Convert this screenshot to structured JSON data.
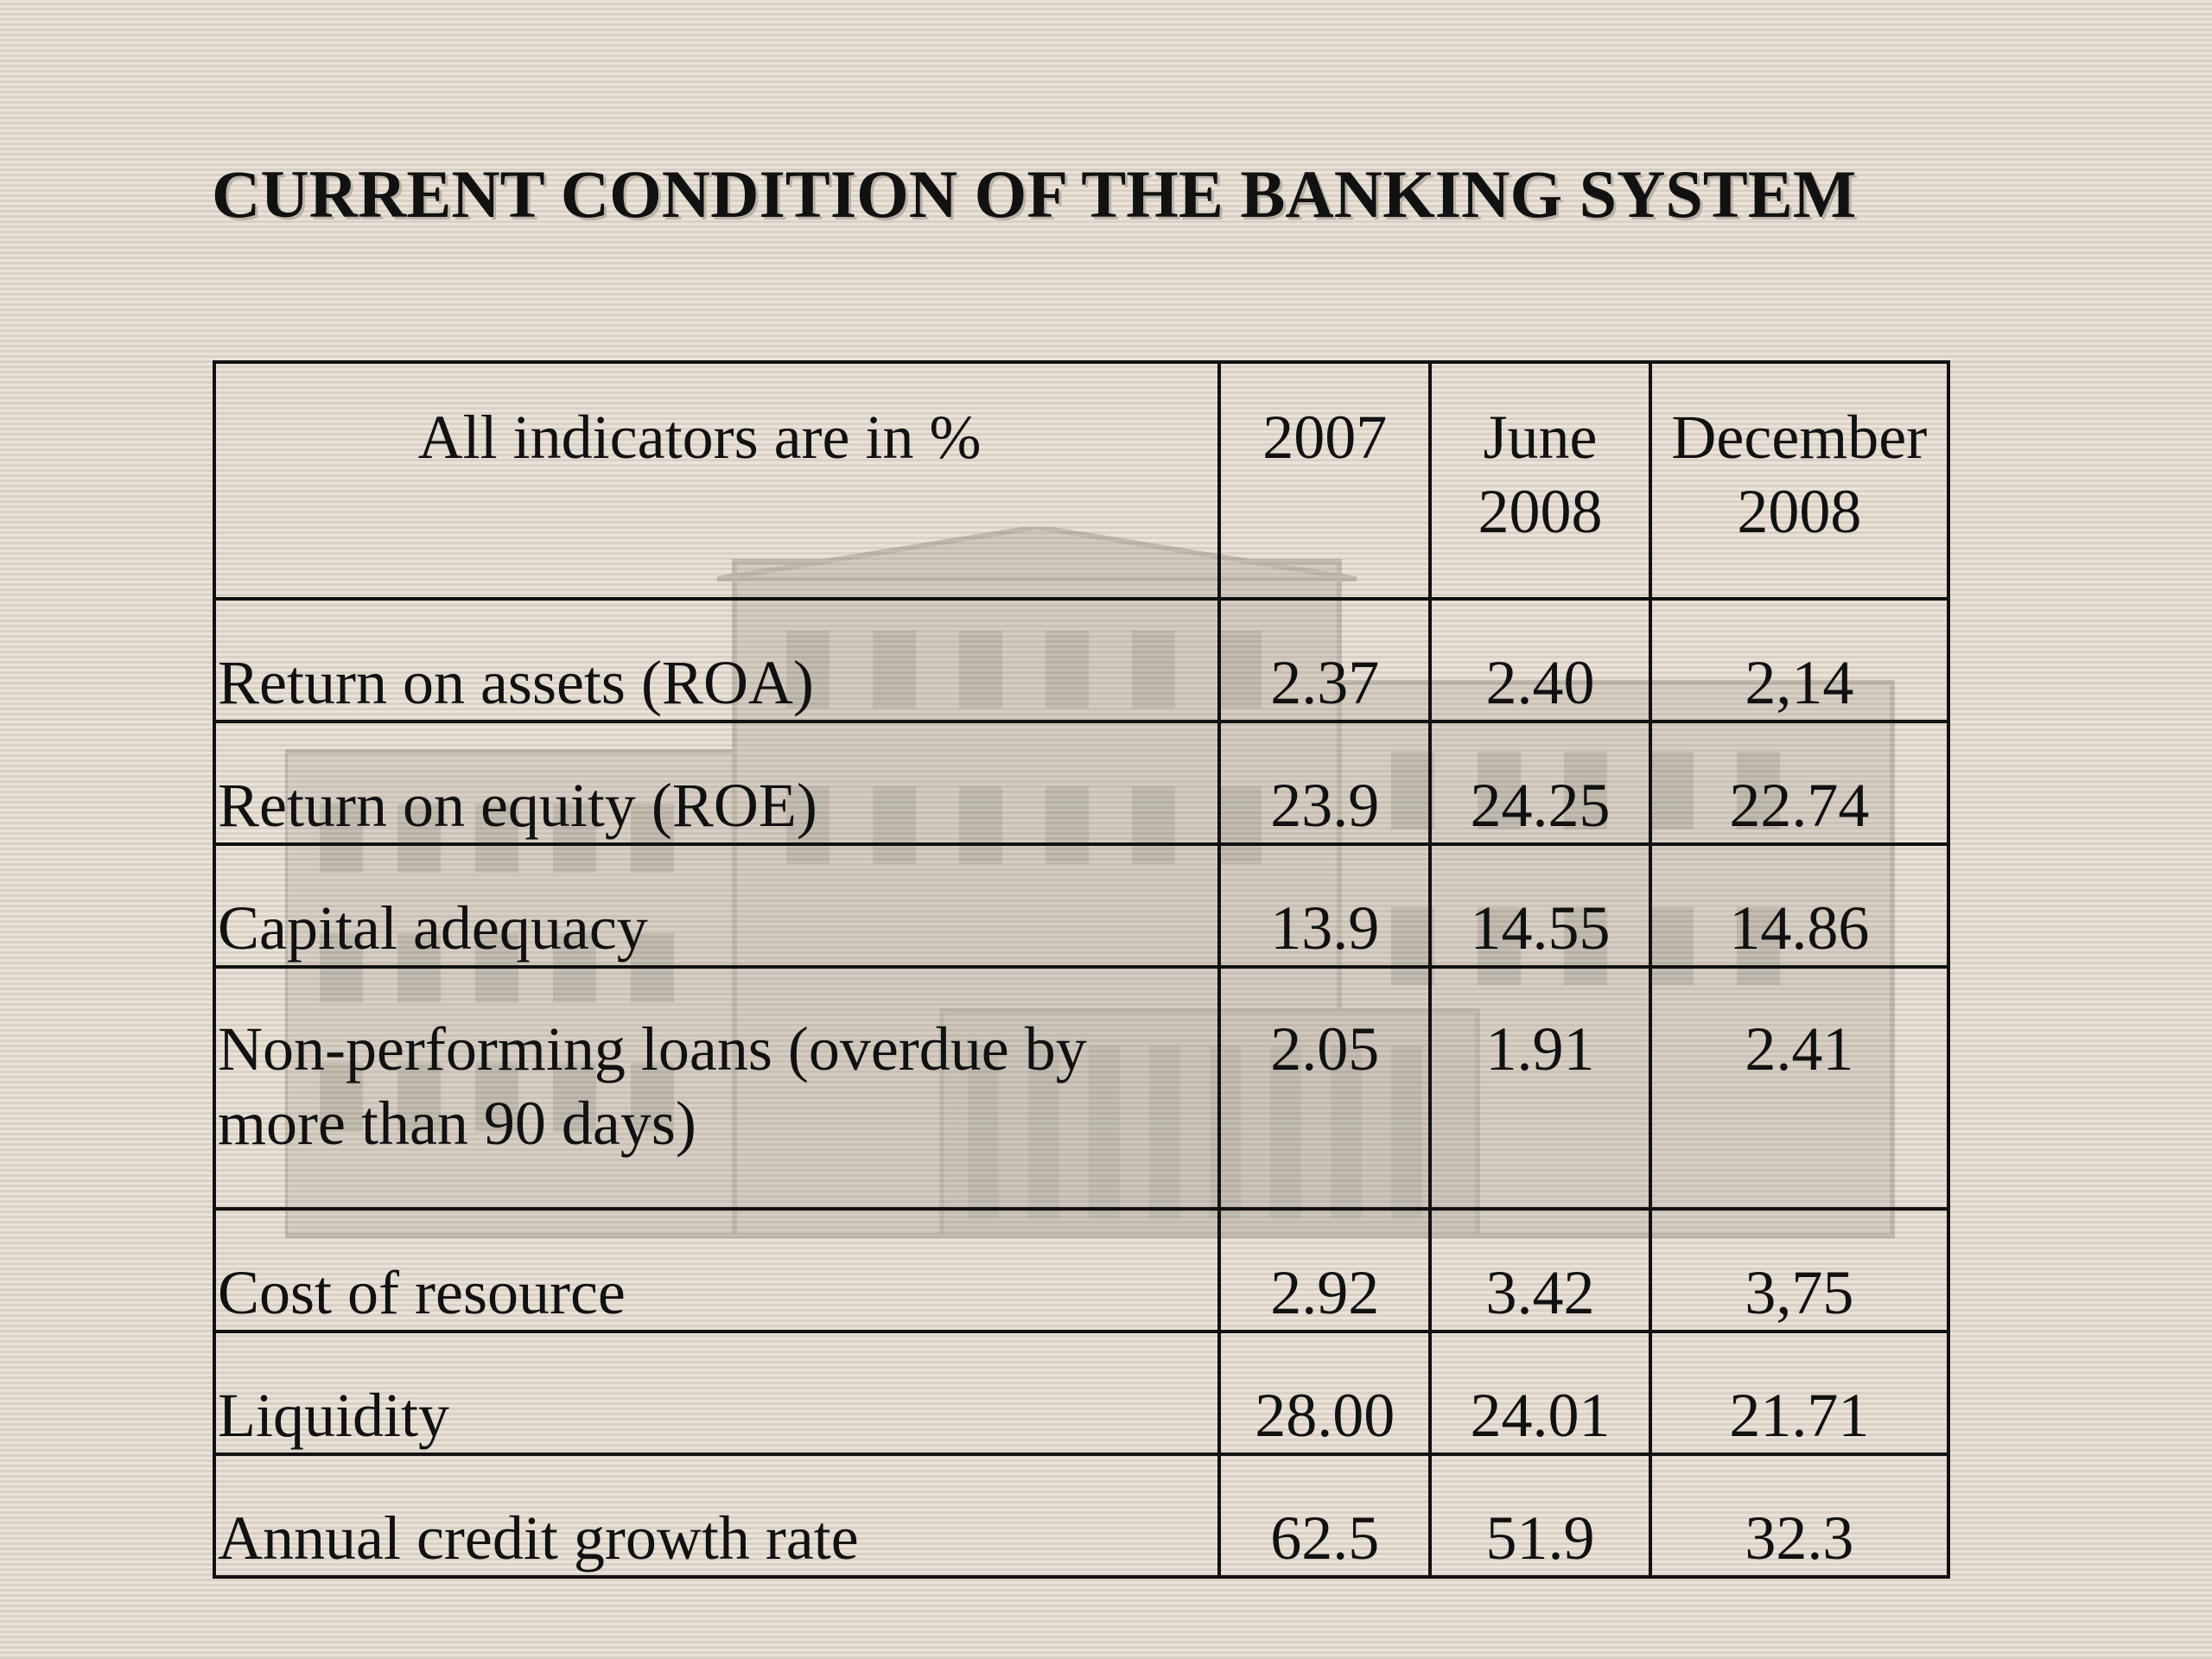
{
  "slide": {
    "title": "CURRENT CONDITION OF THE BANKING SYSTEM"
  },
  "table": {
    "headers": {
      "label": "All indicators are in %",
      "c1": "2007",
      "c2_line1": "June",
      "c2_line2": "2008",
      "c3_line1": "December",
      "c3_line2": "2008"
    },
    "rows": [
      {
        "label": "Return on assets (ROA)",
        "v2007": "2.37",
        "vjun2008": "2.40",
        "vdec2008": "2,14"
      },
      {
        "label": "Return on equity (ROE)",
        "v2007": "23.9",
        "vjun2008": "24.25",
        "vdec2008": "22.74"
      },
      {
        "label": "Capital adequacy",
        "v2007": "13.9",
        "vjun2008": "14.55",
        "vdec2008": "14.86"
      },
      {
        "label": "Non-performing loans (overdue by more than 90 days)",
        "v2007": "2.05",
        "vjun2008": "1.91",
        "vdec2008": "2.41"
      },
      {
        "label": "Cost of resource",
        "v2007": "2.92",
        "vjun2008": "3.42",
        "vdec2008": "3,75"
      },
      {
        "label": "Liquidity",
        "v2007": "28.00",
        "vjun2008": "24.01",
        "vdec2008": "21.71"
      },
      {
        "label": "Annual credit growth rate",
        "v2007": "62.5",
        "vjun2008": "51.9",
        "vdec2008": "32.3"
      }
    ]
  }
}
